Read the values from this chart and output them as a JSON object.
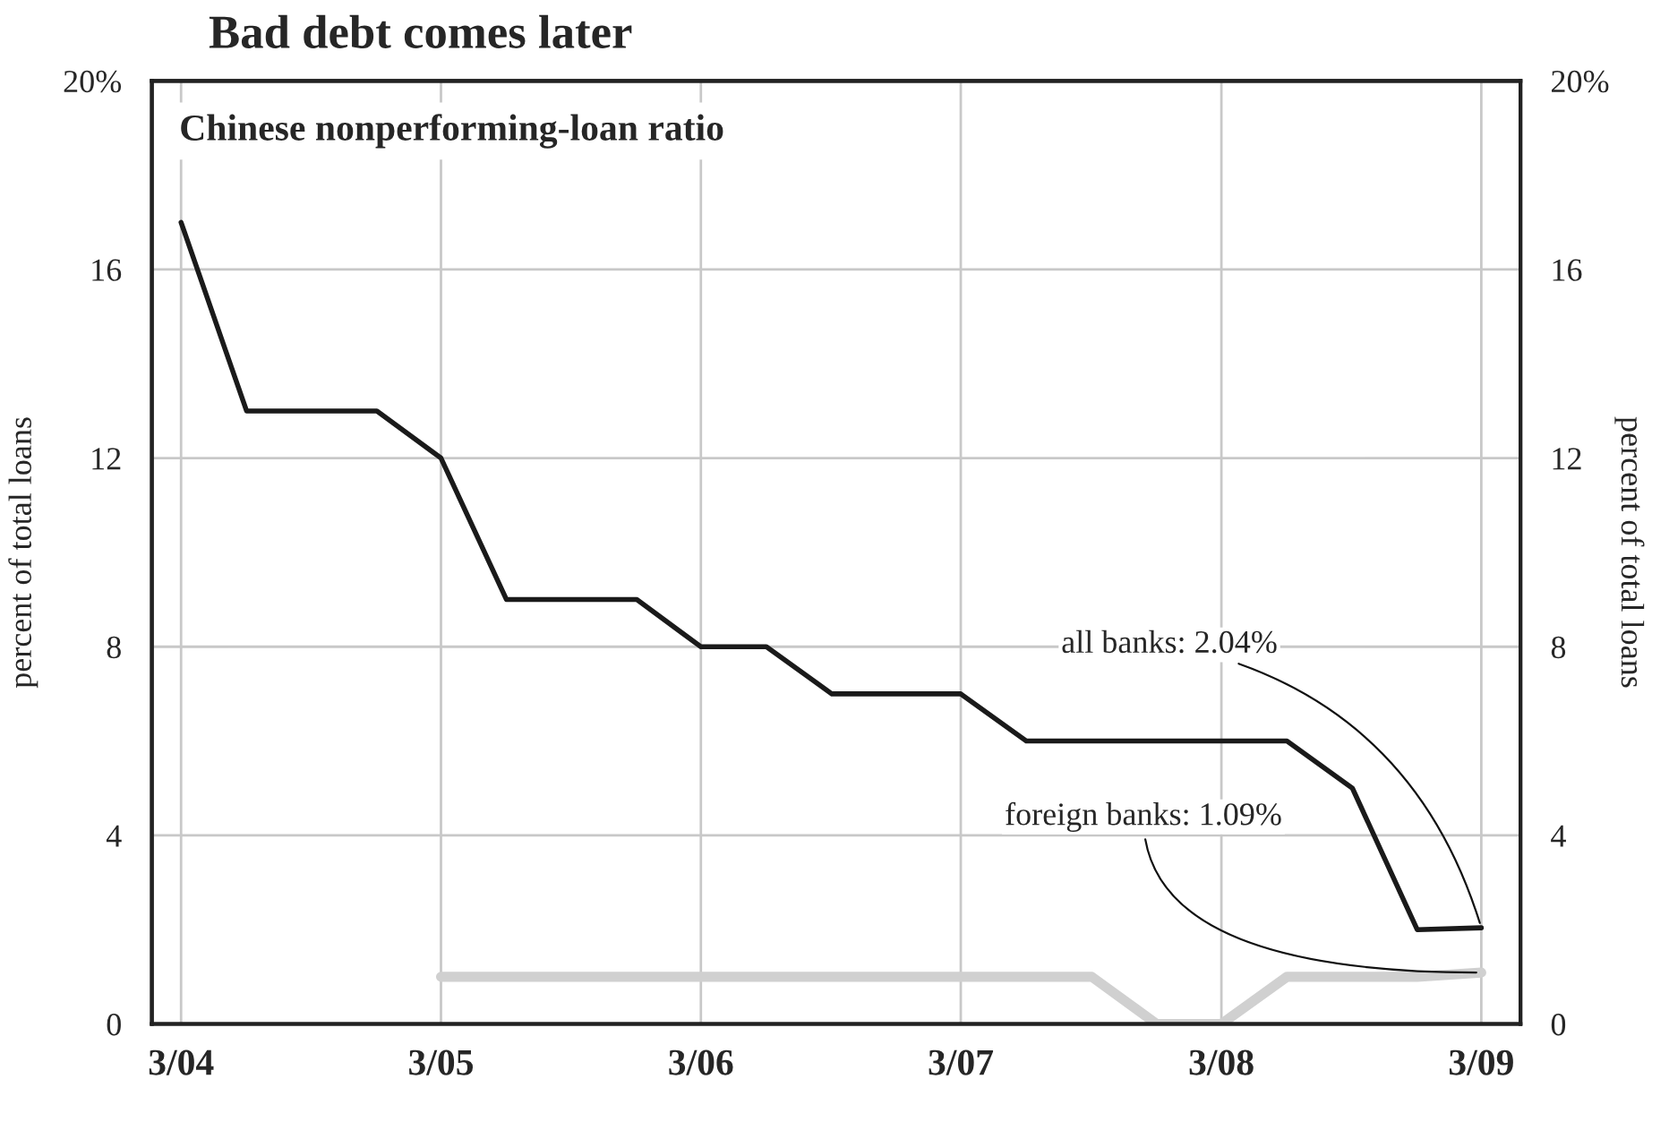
{
  "chart_data": {
    "type": "line",
    "title": "Bad debt comes later",
    "subtitle": "Chinese nonperforming-loan ratio",
    "ylabel": "percent of total loans",
    "y2label": "percent of total loans",
    "x": [
      "2004-03",
      "2004-06",
      "2004-09",
      "2004-12",
      "2005-03",
      "2005-06",
      "2005-09",
      "2005-12",
      "2006-03",
      "2006-06",
      "2006-09",
      "2006-12",
      "2007-03",
      "2007-06",
      "2007-09",
      "2007-12",
      "2008-03",
      "2008-06",
      "2008-09",
      "2008-12",
      "2009-03"
    ],
    "series": [
      {
        "color": "#1a1a1a",
        "values": [
          17,
          13,
          13,
          13,
          12,
          9,
          9,
          9,
          8,
          8,
          7,
          7,
          7,
          6,
          6,
          6,
          6,
          6,
          5,
          2,
          2.04
        ]
      },
      {
        "color": "#d0d0d0",
        "values": [
          null,
          null,
          null,
          null,
          1,
          1,
          1,
          1,
          1,
          1,
          1,
          1,
          1,
          1,
          1,
          0,
          0,
          1,
          1,
          1,
          1.09
        ]
      }
    ],
    "xlim": [
      "2004-01-20",
      "2009-04-25"
    ],
    "xticks": [
      {
        "value": "2004-03",
        "label": "3/04"
      },
      {
        "value": "2005-03",
        "label": "3/05"
      },
      {
        "value": "2006-03",
        "label": "3/06"
      },
      {
        "value": "2007-03",
        "label": "3/07"
      },
      {
        "value": "2008-03",
        "label": "3/08"
      },
      {
        "value": "2009-03",
        "label": "3/09"
      }
    ],
    "ylim": [
      0,
      20
    ],
    "yticks": [
      0,
      4,
      8,
      12,
      16,
      {
        "value": 20,
        "label": "20%"
      }
    ],
    "y2lim": [
      0,
      20
    ],
    "y2ticks": [
      0,
      4,
      8,
      12,
      16,
      {
        "value": 20,
        "label": "20%"
      }
    ],
    "annotations": [
      {
        "text": "all banks: 2.04%",
        "x": "2009-03",
        "y": 2.04
      },
      {
        "text": "foreign banks: 1.09%",
        "x": "2009-03",
        "y": 1.09
      }
    ],
    "grid": true,
    "line_style": "solid",
    "marker": "none"
  }
}
